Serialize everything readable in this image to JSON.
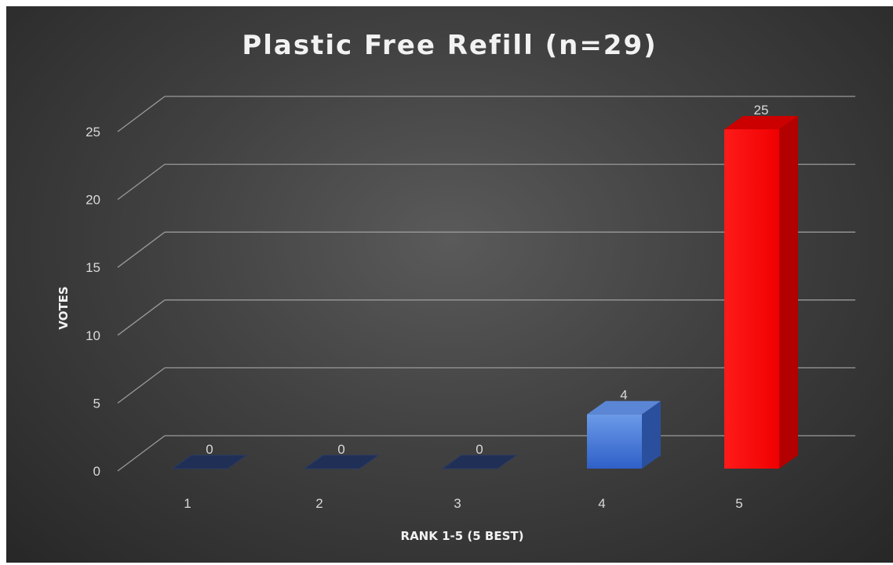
{
  "chart_data": {
    "type": "bar",
    "title": "Plastic Free Refill (n=29)",
    "xlabel": "RANK 1-5 (5 BEST)",
    "ylabel": "VOTES",
    "categories": [
      "1",
      "2",
      "3",
      "4",
      "5"
    ],
    "values": [
      0,
      0,
      0,
      4,
      25
    ],
    "data_labels": [
      "0",
      "0",
      "0",
      "4",
      "25"
    ],
    "ylim": [
      0,
      25
    ],
    "yticks": [
      "0",
      "5",
      "10",
      "15",
      "20",
      "25"
    ],
    "grid": true,
    "legend": "none",
    "bar_colors": [
      "#1f2f55",
      "#1f2f55",
      "#1f2f55",
      "#3d6fd0",
      "#ff0000"
    ]
  }
}
